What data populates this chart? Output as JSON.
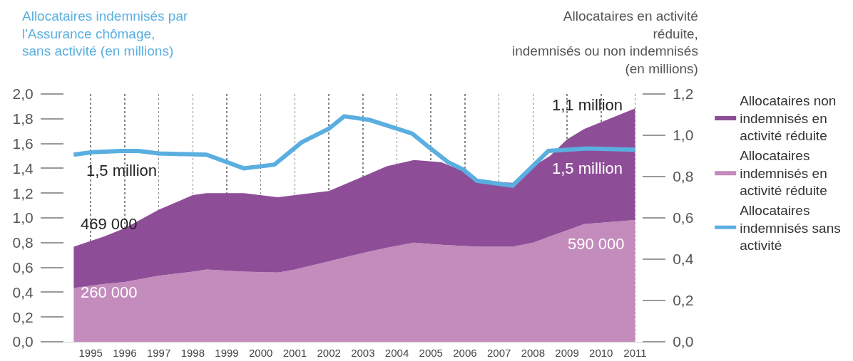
{
  "chart_data": {
    "type": "area",
    "ylabel": "Allocataires indemnisés par l'Assurance chômage, sans activité (en millions)",
    "y2label": "Allocataires en activité réduite, indemnisés ou non indemnisés (en millions)",
    "stacked": true,
    "grid": "x",
    "legend": "right",
    "xlim": [
      1994.22,
      2011.2
    ],
    "xticks": [
      1995,
      1996,
      1997,
      1998,
      1999,
      2000,
      2001,
      2002,
      2003,
      2004,
      2005,
      2006,
      2007,
      2008,
      2009,
      2010,
      2011
    ],
    "ylim": [
      0,
      2.0
    ],
    "yticks": [
      {
        "value": 0,
        "label": "0,0"
      },
      {
        "value": 0.2,
        "label": "0,2"
      },
      {
        "value": 0.4,
        "label": "0,4"
      },
      {
        "value": 0.6,
        "label": "0,6"
      },
      {
        "value": 0.8,
        "label": "0,8"
      },
      {
        "value": 1.0,
        "label": "1,0"
      },
      {
        "value": 1.2,
        "label": "1,2"
      },
      {
        "value": 1.4,
        "label": "1,4"
      },
      {
        "value": 1.6,
        "label": "1,6"
      },
      {
        "value": 1.8,
        "label": "1,8"
      },
      {
        "value": 2.0,
        "label": "2,0"
      }
    ],
    "y2lim": [
      0,
      1.2
    ],
    "y2ticks": [
      {
        "value": 0,
        "label": "0,0"
      },
      {
        "value": 0.2,
        "label": "0,2"
      },
      {
        "value": 0.4,
        "label": "0,4"
      },
      {
        "value": 0.6,
        "label": "0,6"
      },
      {
        "value": 0.8,
        "label": "0,8"
      },
      {
        "value": 1.0,
        "label": "1,0"
      },
      {
        "value": 1.2,
        "label": "1,2"
      }
    ],
    "x": [
      1994.5,
      1995.4,
      1996.0,
      1997.0,
      1998.0,
      1998.4,
      1999.5,
      2000.5,
      2001.0,
      2002.0,
      2003.0,
      2003.7,
      2004.5,
      2005.3,
      2005.9,
      2006.4,
      2007.4,
      2008.0,
      2008.5,
      2009.0,
      2009.5,
      2011.0
    ],
    "series": [
      {
        "name": "Allocataires indemnisés en activité réduite",
        "color": "#c48bbd",
        "axis": "y2",
        "values": [
          0.26,
          0.28,
          0.29,
          0.32,
          0.34,
          0.35,
          0.34,
          0.335,
          0.35,
          0.39,
          0.43,
          0.455,
          0.48,
          0.47,
          0.465,
          0.46,
          0.46,
          0.48,
          0.51,
          0.54,
          0.57,
          0.59
        ]
      },
      {
        "name": "Allocataires non indemnisés en activité réduite",
        "color": "#8e4e97",
        "axis": "y2",
        "values": [
          0.2,
          0.23,
          0.26,
          0.32,
          0.37,
          0.37,
          0.38,
          0.365,
          0.36,
          0.34,
          0.37,
          0.395,
          0.4,
          0.4,
          0.365,
          0.32,
          0.31,
          0.37,
          0.39,
          0.44,
          0.46,
          0.54
        ]
      },
      {
        "name": "Allocataires indemnisés sans activité",
        "color": "#5aafe0",
        "type": "line",
        "x": [
          1994.5,
          1995.04,
          1995.9,
          1996.4,
          1997.0,
          1998.4,
          1999.5,
          2000.4,
          2001.2,
          2002.0,
          2002.45,
          2003.2,
          2004.0,
          2004.45,
          2004.9,
          2005.5,
          2005.95,
          2006.35,
          2007.4,
          2008.45,
          2009.6,
          2011.0
        ],
        "values": [
          1.51,
          1.53,
          1.54,
          1.54,
          1.52,
          1.51,
          1.4,
          1.43,
          1.61,
          1.72,
          1.82,
          1.79,
          1.72,
          1.68,
          1.58,
          1.45,
          1.39,
          1.3,
          1.26,
          1.54,
          1.56,
          1.55
        ]
      }
    ],
    "annotations": [
      "1,5 million",
      "469 000",
      "260 000",
      "1,1 million",
      "1,5 million",
      "590 000"
    ]
  }
}
